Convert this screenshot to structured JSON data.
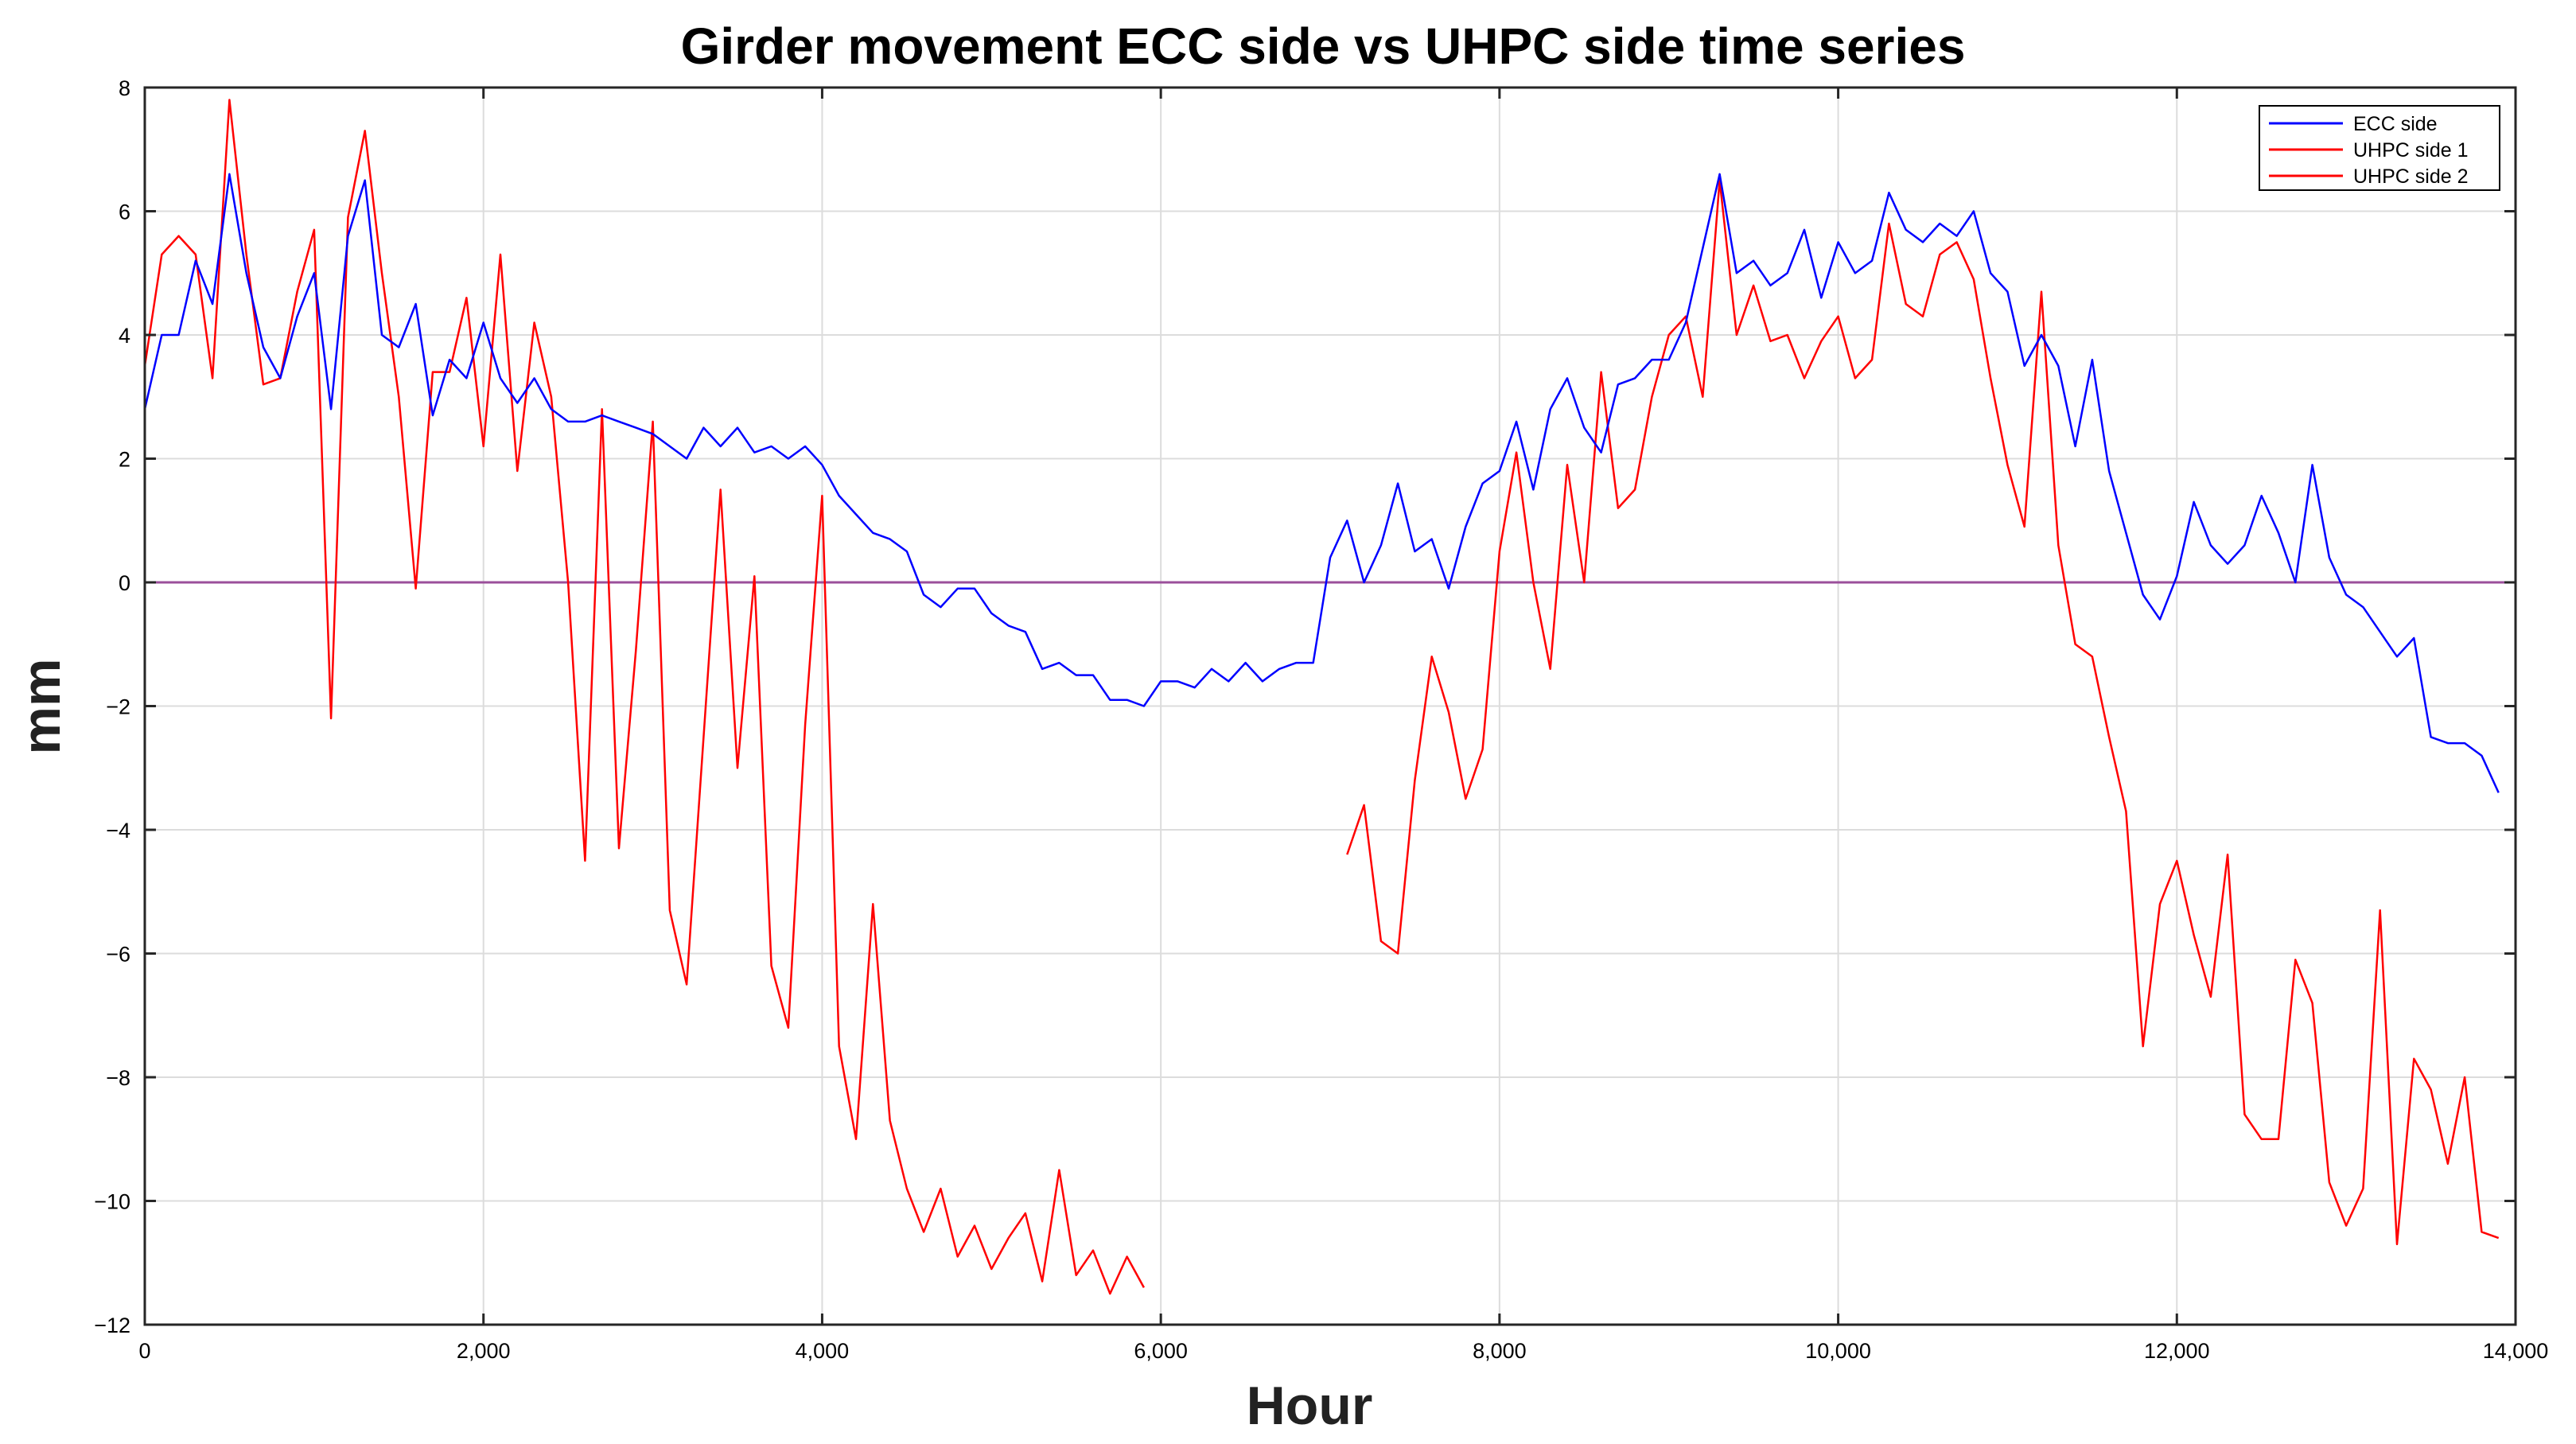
{
  "chart_data": {
    "type": "line",
    "title": "Girder movement ECC side vs UHPC side time series",
    "xlabel": "Hour",
    "ylabel": "mm",
    "xlim": [
      0,
      14000
    ],
    "ylim": [
      -12,
      8
    ],
    "xticks": [
      0,
      2000,
      4000,
      6000,
      8000,
      10000,
      12000,
      14000
    ],
    "xtick_labels": [
      "0",
      "2,000",
      "4,000",
      "6,000",
      "8,000",
      "10,000",
      "12,000",
      "14,000"
    ],
    "yticks": [
      -12,
      -10,
      -8,
      -6,
      -4,
      -2,
      0,
      2,
      4,
      6,
      8
    ],
    "ytick_labels": [
      "−12",
      "−10",
      "−8",
      "−6",
      "−4",
      "−2",
      "0",
      "2",
      "4",
      "6",
      "8"
    ],
    "grid": true,
    "legend_position": "top-right",
    "reference_line": {
      "y": 0,
      "color": "#9b4f9b"
    },
    "series": [
      {
        "name": "ECC side",
        "color": "#0000ff",
        "x": [
          0,
          100,
          200,
          300,
          400,
          500,
          600,
          700,
          800,
          900,
          1000,
          1100,
          1200,
          1300,
          1400,
          1500,
          1600,
          1700,
          1800,
          1900,
          2000,
          2100,
          2200,
          2300,
          2400,
          2500,
          2600,
          2700,
          2800,
          2900,
          3000,
          3100,
          3200,
          3300,
          3400,
          3500,
          3600,
          3700,
          3800,
          3900,
          4000,
          4100,
          4200,
          4300,
          4400,
          4500,
          4600,
          4700,
          4800,
          4900,
          5000,
          5100,
          5200,
          5300,
          5400,
          5500,
          5600,
          5700,
          5800,
          5900,
          6000,
          6100,
          6200,
          6300,
          6400,
          6500,
          6600,
          6700,
          6800,
          6900,
          7000,
          7100,
          7200,
          7300,
          7400,
          7500,
          7600,
          7700,
          7800,
          7900,
          8000,
          8100,
          8200,
          8300,
          8400,
          8500,
          8600,
          8700,
          8800,
          8900,
          9000,
          9100,
          9200,
          9300,
          9400,
          9500,
          9600,
          9700,
          9800,
          9900,
          10000,
          10100,
          10200,
          10300,
          10400,
          10500,
          10600,
          10700,
          10800,
          10900,
          11000,
          11100,
          11200,
          11300,
          11400,
          11500,
          11600,
          11700,
          11800,
          11900,
          12000,
          12100,
          12200,
          12300,
          12400,
          12500,
          12600,
          12700,
          12800,
          12900,
          13000,
          13100,
          13200,
          13300,
          13400,
          13500,
          13600,
          13700,
          13800,
          13900
        ],
        "y": [
          2.8,
          4.0,
          4.0,
          5.2,
          4.5,
          6.6,
          5.0,
          3.8,
          3.3,
          4.3,
          5.0,
          2.8,
          5.6,
          6.5,
          4.0,
          3.8,
          4.5,
          2.7,
          3.6,
          3.3,
          4.2,
          3.3,
          2.9,
          3.3,
          2.8,
          2.6,
          2.6,
          2.7,
          2.6,
          2.5,
          2.4,
          2.2,
          2.0,
          2.5,
          2.2,
          2.5,
          2.1,
          2.2,
          2.0,
          2.2,
          1.9,
          1.4,
          1.1,
          0.8,
          0.7,
          0.5,
          -0.2,
          -0.4,
          -0.1,
          -0.1,
          -0.5,
          -0.7,
          -0.8,
          -1.4,
          -1.3,
          -1.5,
          -1.5,
          -1.9,
          -1.9,
          -2.0,
          -1.6,
          -1.6,
          -1.7,
          -1.4,
          -1.6,
          -1.3,
          -1.6,
          -1.4,
          -1.3,
          -1.3,
          0.4,
          1.0,
          0.0,
          0.6,
          1.6,
          0.5,
          0.7,
          -0.1,
          0.9,
          1.6,
          1.8,
          2.6,
          1.5,
          2.8,
          3.3,
          2.5,
          2.1,
          3.2,
          3.3,
          3.6,
          3.6,
          4.2,
          5.4,
          6.6,
          5.0,
          5.2,
          4.8,
          5.0,
          5.7,
          4.6,
          5.5,
          5.0,
          5.2,
          6.3,
          5.7,
          5.5,
          5.8,
          5.6,
          6.0,
          5.0,
          4.7,
          3.5,
          4.0,
          3.5,
          2.2,
          3.6,
          1.8,
          0.8,
          -0.2,
          -0.6,
          0.1,
          1.3,
          0.6,
          0.3,
          0.6,
          1.4,
          0.8,
          0.0,
          1.9,
          0.4,
          -0.2,
          -0.4,
          -0.8,
          -1.2,
          -0.9,
          -2.5,
          -2.6,
          -2.6,
          -2.8,
          -3.4
        ]
      },
      {
        "name": "UHPC side 1",
        "color": "#ff0000",
        "x": [
          0,
          100,
          200,
          300,
          400,
          500,
          600,
          700,
          800,
          900,
          1000,
          1100,
          1200,
          1300,
          1400,
          1500,
          1600,
          1700,
          1800,
          1900,
          2000,
          2100,
          2200,
          2300,
          2400,
          2500,
          2600,
          2700,
          2800,
          2900,
          3000,
          3100,
          3200,
          3300,
          3400,
          3500,
          3600,
          3700,
          3800,
          3900,
          4000,
          4100,
          4200,
          4300,
          4400,
          4500,
          4600,
          4700,
          4800,
          4900,
          5000,
          5100,
          5200,
          5300,
          5400,
          5500,
          5600,
          5700,
          5800,
          5900
        ],
        "y": [
          3.5,
          5.3,
          5.6,
          5.3,
          3.3,
          7.8,
          5.3,
          3.2,
          3.3,
          4.7,
          5.7,
          -2.2,
          5.9,
          7.3,
          5.0,
          3.0,
          -0.1,
          3.4,
          3.4,
          4.6,
          2.2,
          5.3,
          1.8,
          4.2,
          3.0,
          0.0,
          -4.5,
          2.8,
          -4.3,
          -1.1,
          2.6,
          -5.3,
          -6.5,
          -2.5,
          1.5,
          -3.0,
          0.1,
          -6.2,
          -7.2,
          -2.3,
          1.4,
          -7.5,
          -9.0,
          -5.2,
          -8.7,
          -9.8,
          -10.5,
          -9.8,
          -10.9,
          -10.4,
          -11.1,
          -10.6,
          -10.2,
          -11.3,
          -9.5,
          -11.2,
          -10.8,
          -11.5,
          -10.9,
          -11.4
        ]
      },
      {
        "name": "UHPC side 2",
        "color": "#ff0000",
        "x": [
          7100,
          7200,
          7300,
          7400,
          7500,
          7600,
          7700,
          7800,
          7900,
          8000,
          8100,
          8200,
          8300,
          8400,
          8500,
          8600,
          8700,
          8800,
          8900,
          9000,
          9100,
          9200,
          9300,
          9400,
          9500,
          9600,
          9700,
          9800,
          9900,
          10000,
          10100,
          10200,
          10300,
          10400,
          10500,
          10600,
          10700,
          10800,
          10900,
          11000,
          11100,
          11200,
          11300,
          11400,
          11500,
          11600,
          11700,
          11800,
          11900,
          12000,
          12100,
          12200,
          12300,
          12400,
          12500,
          12600,
          12700,
          12800,
          12900,
          13000,
          13100,
          13200,
          13300,
          13400,
          13500,
          13600,
          13700,
          13800,
          13900
        ],
        "y": [
          -4.4,
          -3.6,
          -5.8,
          -6.0,
          -3.2,
          -1.2,
          -2.1,
          -3.5,
          -2.7,
          0.5,
          2.1,
          0.0,
          -1.4,
          1.9,
          0.0,
          3.4,
          1.2,
          1.5,
          3.0,
          4.0,
          4.3,
          3.0,
          6.5,
          4.0,
          4.8,
          3.9,
          4.0,
          3.3,
          3.9,
          4.3,
          3.3,
          3.6,
          5.8,
          4.5,
          4.3,
          5.3,
          5.5,
          4.9,
          3.3,
          1.9,
          0.9,
          4.7,
          0.6,
          -1.0,
          -1.2,
          -2.5,
          -3.7,
          -7.5,
          -5.2,
          -4.5,
          -5.7,
          -6.7,
          -4.4,
          -8.6,
          -9.0,
          -9.0,
          -6.1,
          -6.8,
          -9.7,
          -10.4,
          -9.8,
          -5.3,
          -10.7,
          -7.7,
          -8.2,
          -9.4,
          -8.0,
          -10.5,
          -10.6
        ]
      }
    ]
  }
}
